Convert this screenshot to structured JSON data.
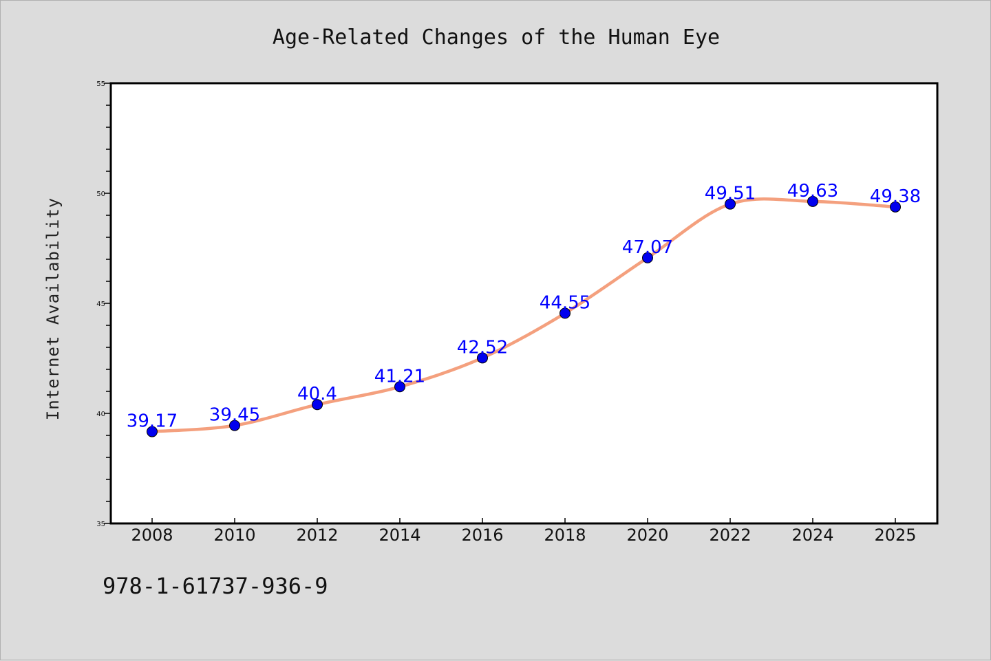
{
  "chart_data": {
    "type": "line",
    "title": "Age-Related Changes of the Human Eye",
    "xlabel": "",
    "ylabel": "Internet Availability",
    "categories": [
      "2008",
      "2010",
      "2012",
      "2014",
      "2016",
      "2018",
      "2020",
      "2022",
      "2024",
      "2025"
    ],
    "series": [
      {
        "values": [
          39.17,
          39.45,
          40.4,
          41.21,
          42.52,
          44.55,
          47.07,
          49.51,
          49.63,
          49.38
        ],
        "labels": [
          "39.17",
          "39.45",
          "40.4",
          "41.21",
          "42.52",
          "44.55",
          "47.07",
          "49.51",
          "49.63",
          "49.38"
        ],
        "line_color": "#f4a07e",
        "marker_color": "#0000ee"
      }
    ],
    "ylim": [
      35,
      55
    ],
    "yticks": [
      "35",
      "40",
      "45",
      "50",
      "55"
    ],
    "grid": false,
    "legend": "none",
    "label_color": "#0000ff"
  },
  "footer": {
    "isbn": "978-1-61737-936-9"
  }
}
